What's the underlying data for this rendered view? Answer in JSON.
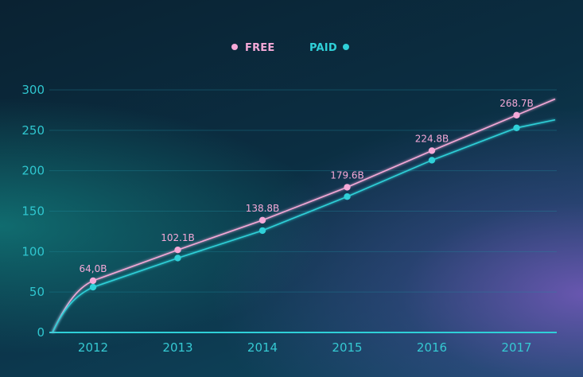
{
  "chart_data": {
    "type": "line",
    "categories": [
      "2012",
      "2013",
      "2014",
      "2015",
      "2016",
      "2017"
    ],
    "x": [
      2012,
      2013,
      2014,
      2015,
      2016,
      2017
    ],
    "series": [
      {
        "name": "FREE",
        "color": "#f5a9d8",
        "values": [
          64.0,
          102.1,
          138.8,
          179.6,
          224.8,
          268.7
        ],
        "labels": [
          "64,0B",
          "102.1B",
          "138.8B",
          "179.6B",
          "224.8B",
          "268.7B"
        ]
      },
      {
        "name": "PAID",
        "color": "#2fd0d8",
        "values": [
          56,
          92,
          126,
          168,
          213,
          253
        ],
        "labels": []
      }
    ],
    "ylim": [
      0,
      300
    ],
    "yticks": [
      "0",
      "50",
      "100",
      "150",
      "200",
      "250",
      "300"
    ],
    "grid": true,
    "legend": "top-center",
    "title": "",
    "xlabel": "",
    "ylabel": ""
  }
}
